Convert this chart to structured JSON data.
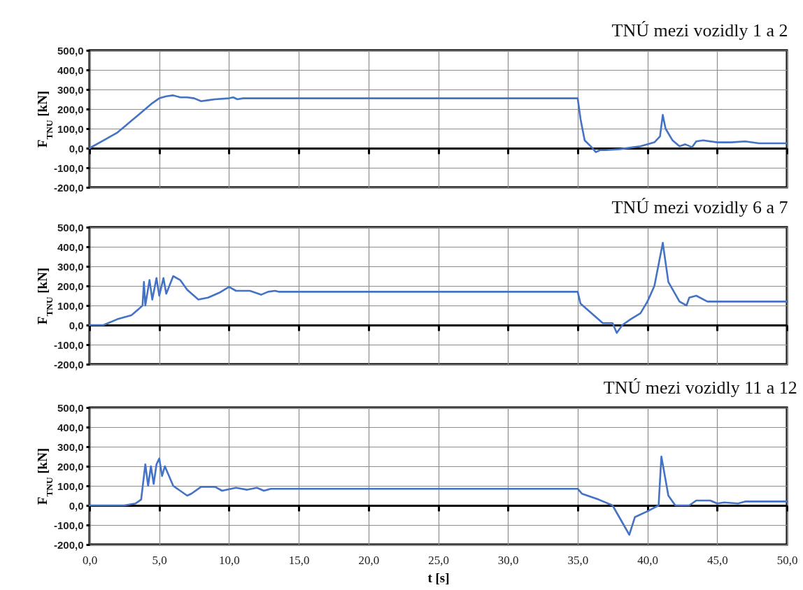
{
  "chart_data": [
    {
      "type": "line",
      "title": "TNÚ mezi vozidly 1 a 2",
      "ylabel": "F$_{TNU}$ [kN]",
      "grid": true,
      "tick_labels": "y",
      "xlim": [
        0,
        50
      ],
      "ylim": [
        -200,
        500
      ],
      "xticks": [
        {
          "value": 0,
          "label": null
        },
        {
          "value": 5,
          "label": null
        },
        {
          "value": 10,
          "label": null
        },
        {
          "value": 15,
          "label": null
        },
        {
          "value": 20,
          "label": null
        },
        {
          "value": 25,
          "label": null
        },
        {
          "value": 30,
          "label": null
        },
        {
          "value": 35,
          "label": null
        },
        {
          "value": 40,
          "label": null
        },
        {
          "value": 45,
          "label": null
        },
        {
          "value": 50,
          "label": null
        }
      ],
      "yticks": [
        {
          "value": 500,
          "label": "500,0"
        },
        {
          "value": 400,
          "label": "400,0"
        },
        {
          "value": 300,
          "label": "300,0"
        },
        {
          "value": 200,
          "label": "200,0"
        },
        {
          "value": 100,
          "label": "100,0"
        },
        {
          "value": 0,
          "label": "0,0"
        },
        {
          "value": -100,
          "label": "-100,0"
        },
        {
          "value": -200,
          "label": "-200,0"
        }
      ],
      "series": [
        {
          "color": "#4472c4",
          "x": [
            0,
            1,
            2,
            2.5,
            3,
            3.5,
            4,
            4.5,
            5,
            5.5,
            6,
            6.5,
            7,
            7.5,
            8,
            8.5,
            9,
            10,
            10.3,
            10.6,
            11,
            35,
            35.2,
            35.5,
            36,
            36.3,
            36.6,
            37,
            38,
            39,
            39.5,
            40.5,
            40.9,
            41.1,
            41.3,
            41.8,
            42.3,
            42.7,
            43.2,
            43.5,
            44,
            45,
            46,
            47,
            48,
            50
          ],
          "values": [
            0,
            40,
            80,
            110,
            140,
            170,
            200,
            230,
            255,
            265,
            270,
            260,
            260,
            255,
            240,
            245,
            250,
            255,
            260,
            250,
            255,
            255,
            150,
            40,
            5,
            -20,
            -10,
            -10,
            -5,
            5,
            10,
            30,
            60,
            170,
            100,
            40,
            10,
            20,
            5,
            35,
            40,
            30,
            30,
            35,
            25,
            25
          ]
        }
      ]
    },
    {
      "type": "line",
      "title": "TNÚ mezi vozidly 6 a 7",
      "ylabel": "F$_{TNU}$ [kN]",
      "grid": true,
      "tick_labels": "y",
      "xlim": [
        0,
        50
      ],
      "ylim": [
        -200,
        500
      ],
      "xticks": [
        {
          "value": 0,
          "label": null
        },
        {
          "value": 5,
          "label": null
        },
        {
          "value": 10,
          "label": null
        },
        {
          "value": 15,
          "label": null
        },
        {
          "value": 20,
          "label": null
        },
        {
          "value": 25,
          "label": null
        },
        {
          "value": 30,
          "label": null
        },
        {
          "value": 35,
          "label": null
        },
        {
          "value": 40,
          "label": null
        },
        {
          "value": 45,
          "label": null
        },
        {
          "value": 50,
          "label": null
        }
      ],
      "yticks": [
        {
          "value": 500,
          "label": "500,0"
        },
        {
          "value": 400,
          "label": "400,0"
        },
        {
          "value": 300,
          "label": "300,0"
        },
        {
          "value": 200,
          "label": "200,0"
        },
        {
          "value": 100,
          "label": "100,0"
        },
        {
          "value": 0,
          "label": "0,0"
        },
        {
          "value": -100,
          "label": "-100,0"
        },
        {
          "value": -200,
          "label": "-200,0"
        }
      ],
      "series": [
        {
          "color": "#4472c4",
          "x": [
            0,
            1,
            2,
            3,
            3.5,
            3.8,
            3.9,
            4.0,
            4.3,
            4.5,
            4.8,
            5.0,
            5.3,
            5.5,
            6.0,
            6.5,
            7,
            7.8,
            8.5,
            9.3,
            10,
            10.5,
            11.5,
            12.3,
            12.8,
            13.3,
            13.6,
            35,
            35.2,
            36,
            36.8,
            37.5,
            37.8,
            38.2,
            38.8,
            39.5,
            40,
            40.5,
            41.1,
            41.5,
            42.3,
            42.8,
            43,
            43.5,
            44.3,
            50
          ],
          "values": [
            0,
            0,
            30,
            50,
            80,
            100,
            220,
            100,
            230,
            130,
            240,
            150,
            240,
            160,
            250,
            230,
            180,
            130,
            140,
            165,
            195,
            175,
            175,
            155,
            170,
            175,
            170,
            170,
            110,
            60,
            10,
            10,
            -40,
            0,
            30,
            60,
            120,
            200,
            420,
            220,
            120,
            100,
            140,
            150,
            120,
            120
          ]
        }
      ]
    },
    {
      "type": "line",
      "title": "TNÚ mezi vozidly 11 a 12",
      "xlabel": "t [s]",
      "ylabel": "F$_{TNU}$ [kN]",
      "grid": true,
      "xlim": [
        0,
        50
      ],
      "ylim": [
        -200,
        500
      ],
      "xticks": [
        {
          "value": 0,
          "label": "0,0"
        },
        {
          "value": 5,
          "label": "5,0"
        },
        {
          "value": 10,
          "label": "10,0"
        },
        {
          "value": 15,
          "label": "15,0"
        },
        {
          "value": 20,
          "label": "20,0"
        },
        {
          "value": 25,
          "label": "25,0"
        },
        {
          "value": 30,
          "label": "30,0"
        },
        {
          "value": 35,
          "label": "35,0"
        },
        {
          "value": 40,
          "label": "40,0"
        },
        {
          "value": 45,
          "label": "45,0"
        },
        {
          "value": 50,
          "label": "50,0"
        }
      ],
      "yticks": [
        {
          "value": 500,
          "label": "500,0"
        },
        {
          "value": 400,
          "label": "400,0"
        },
        {
          "value": 300,
          "label": "300,0"
        },
        {
          "value": 200,
          "label": "200,0"
        },
        {
          "value": 100,
          "label": "100,0"
        },
        {
          "value": 0,
          "label": "0,0"
        },
        {
          "value": -100,
          "label": "-100,0"
        },
        {
          "value": -200,
          "label": "-200,0"
        }
      ],
      "series": [
        {
          "color": "#4472c4",
          "x": [
            0,
            2.5,
            3.3,
            3.7,
            4.0,
            4.2,
            4.4,
            4.6,
            4.8,
            5.0,
            5.2,
            5.4,
            6,
            7,
            7.3,
            8,
            9,
            9.5,
            10.5,
            11.3,
            12,
            12.5,
            13,
            35,
            35.3,
            36.5,
            37.5,
            38.3,
            38.7,
            39.1,
            40,
            40.8,
            41.0,
            41.5,
            42,
            43,
            43.5,
            44.5,
            45,
            45.5,
            46.5,
            47,
            50
          ],
          "values": [
            0,
            0,
            10,
            30,
            210,
            100,
            200,
            110,
            210,
            240,
            150,
            200,
            100,
            50,
            60,
            95,
            95,
            75,
            90,
            80,
            90,
            75,
            85,
            85,
            60,
            30,
            0,
            -100,
            -150,
            -60,
            -30,
            0,
            250,
            50,
            0,
            0,
            25,
            25,
            10,
            15,
            10,
            20,
            20
          ]
        }
      ]
    }
  ]
}
